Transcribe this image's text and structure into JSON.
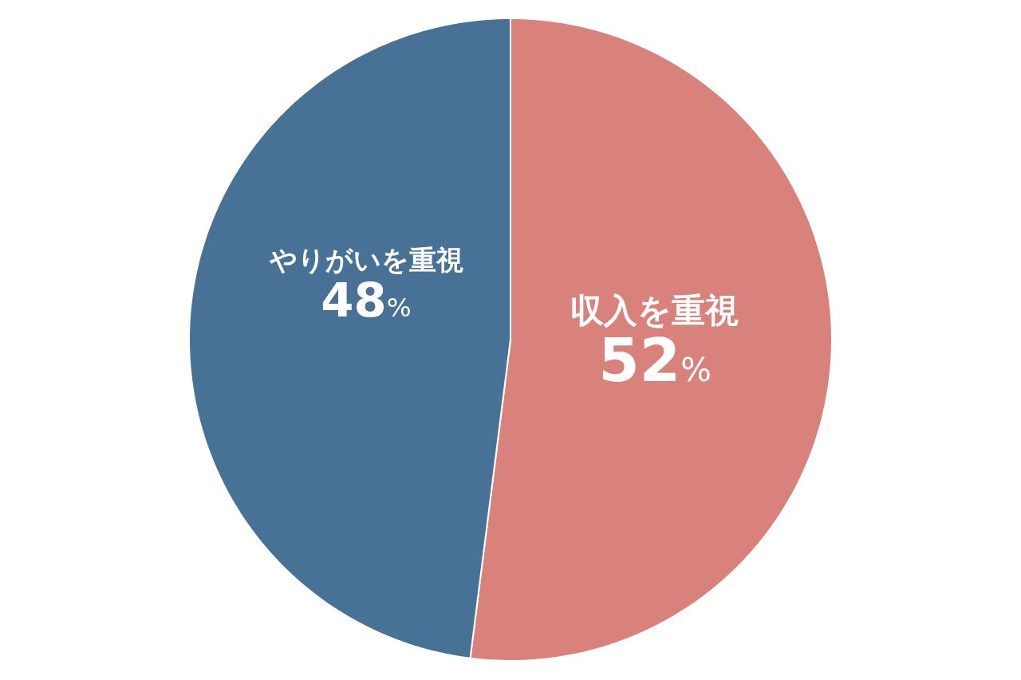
{
  "chart_data": {
    "type": "pie",
    "categories": [
      "収入を重視",
      "やりがいを重視"
    ],
    "values": [
      52,
      48
    ],
    "colors": [
      "#d9817b",
      "#487196"
    ],
    "value_labels": [
      "52%",
      "48%"
    ]
  }
}
